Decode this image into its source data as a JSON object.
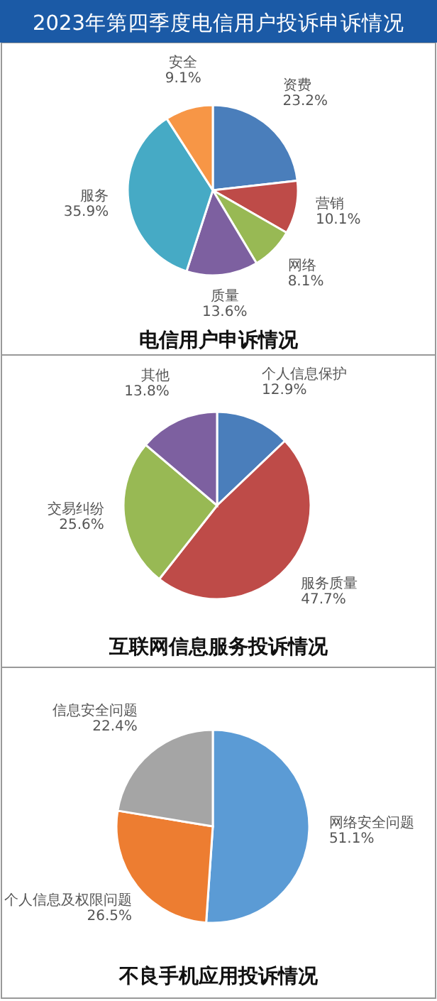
{
  "chart_data": [
    {
      "type": "pie",
      "title": "电信用户申诉情况",
      "annotations": [
        "2023年第四季度电信用户投诉申诉情况"
      ],
      "categories": [
        "资费",
        "营销",
        "网络",
        "质量",
        "服务",
        "安全"
      ],
      "values": [
        23.2,
        10.1,
        8.1,
        13.6,
        35.9,
        9.1
      ],
      "value_labels": [
        "23.2%",
        "10.1%",
        "8.1%",
        "13.6%",
        "35.9%",
        "9.1%"
      ],
      "colors": [
        "#4a7ebb",
        "#be4b48",
        "#98b954",
        "#7d60a0",
        "#46aac5",
        "#f79646"
      ]
    },
    {
      "type": "pie",
      "title": "互联网信息服务投诉情况",
      "categories": [
        "个人信息保护",
        "服务质量",
        "交易纠纷",
        "其他"
      ],
      "values": [
        12.9,
        47.7,
        25.6,
        13.8
      ],
      "value_labels": [
        "12.9%",
        "47.7%",
        "25.6%",
        "13.8%"
      ],
      "colors": [
        "#4a7ebb",
        "#be4b48",
        "#98b954",
        "#7d60a0"
      ]
    },
    {
      "type": "pie",
      "title": "不良手机应用投诉情况",
      "categories": [
        "网络安全问题",
        "个人信息及权限问题",
        "信息安全问题"
      ],
      "values": [
        51.1,
        26.5,
        22.4
      ],
      "value_labels": [
        "51.1%",
        "26.5%",
        "22.4%"
      ],
      "colors": [
        "#5b9bd5",
        "#ed7d31",
        "#a5a5a5"
      ]
    }
  ]
}
